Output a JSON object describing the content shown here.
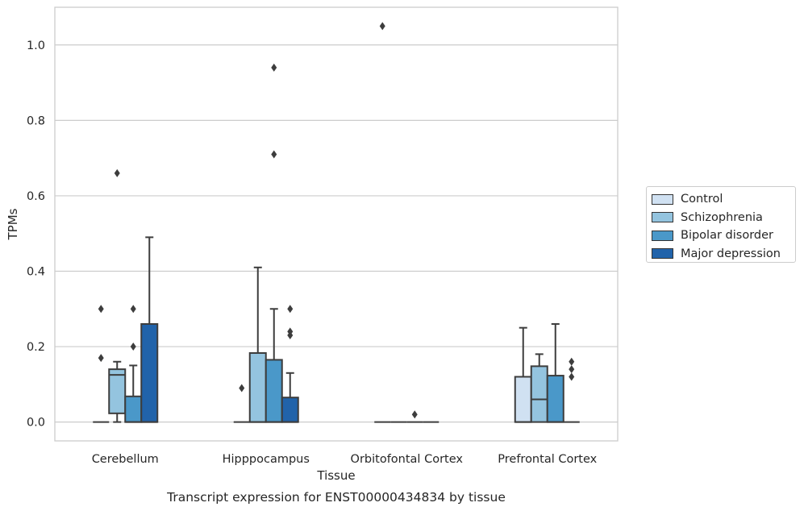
{
  "chart_data": {
    "type": "box",
    "title": "Transcript expression for ENST00000434834 by tissue",
    "xlabel": "Tissue",
    "ylabel": "TPMs",
    "ylim": [
      -0.05,
      1.1
    ],
    "yticks": [
      "0.0",
      "0.2",
      "0.4",
      "0.6",
      "0.8",
      "1.0"
    ],
    "grid": "horizontal",
    "legend_position": "right",
    "categories": [
      "Cerebellum",
      "Hipppocampus",
      "Orbitofontal Cortex",
      "Prefrontal Cortex"
    ],
    "series": [
      {
        "name": "Control",
        "color": "#d0e1f2",
        "boxes": [
          {
            "q1": 0,
            "median": 0,
            "q3": 0,
            "whislo": 0,
            "whishi": 0,
            "fliers": [
              0.17,
              0.3
            ]
          },
          {
            "q1": 0,
            "median": 0,
            "q3": 0,
            "whislo": 0,
            "whishi": 0,
            "fliers": [
              0.09
            ]
          },
          {
            "q1": 0,
            "median": 0,
            "q3": 0,
            "whislo": 0,
            "whishi": 0,
            "fliers": [
              1.05
            ]
          },
          {
            "q1": 0,
            "median": 0,
            "q3": 0.12,
            "whislo": 0,
            "whishi": 0.25,
            "fliers": []
          }
        ]
      },
      {
        "name": "Schizophrenia",
        "color": "#94c4df",
        "boxes": [
          {
            "q1": 0.023,
            "median": 0.125,
            "q3": 0.14,
            "whislo": 0,
            "whishi": 0.16,
            "fliers": [
              0.66
            ]
          },
          {
            "q1": 0,
            "median": 0,
            "q3": 0.183,
            "whislo": 0,
            "whishi": 0.41,
            "fliers": []
          },
          {
            "q1": 0,
            "median": 0,
            "q3": 0,
            "whislo": 0,
            "whishi": 0,
            "fliers": []
          },
          {
            "q1": 0,
            "median": 0.06,
            "q3": 0.148,
            "whislo": 0,
            "whishi": 0.18,
            "fliers": []
          }
        ]
      },
      {
        "name": "Bipolar disorder",
        "color": "#4a98c9",
        "boxes": [
          {
            "q1": 0,
            "median": 0,
            "q3": 0.068,
            "whislo": 0,
            "whishi": 0.15,
            "fliers": [
              0.2,
              0.3
            ]
          },
          {
            "q1": 0,
            "median": 0,
            "q3": 0.165,
            "whislo": 0,
            "whishi": 0.3,
            "fliers": [
              0.71,
              0.94
            ]
          },
          {
            "q1": 0,
            "median": 0,
            "q3": 0,
            "whislo": 0,
            "whishi": 0,
            "fliers": [
              0.02
            ]
          },
          {
            "q1": 0,
            "median": 0,
            "q3": 0.123,
            "whislo": 0,
            "whishi": 0.26,
            "fliers": []
          }
        ]
      },
      {
        "name": "Major depression",
        "color": "#2163aa",
        "boxes": [
          {
            "q1": 0,
            "median": 0,
            "q3": 0.26,
            "whislo": 0,
            "whishi": 0.49,
            "fliers": []
          },
          {
            "q1": 0,
            "median": 0,
            "q3": 0.065,
            "whislo": 0,
            "whishi": 0.13,
            "fliers": [
              0.23,
              0.24,
              0.3
            ]
          },
          {
            "q1": 0,
            "median": 0,
            "q3": 0,
            "whislo": 0,
            "whishi": 0,
            "fliers": []
          },
          {
            "q1": 0,
            "median": 0,
            "q3": 0,
            "whislo": 0,
            "whishi": 0,
            "fliers": [
              0.12,
              0.14,
              0.16
            ]
          }
        ]
      }
    ]
  }
}
